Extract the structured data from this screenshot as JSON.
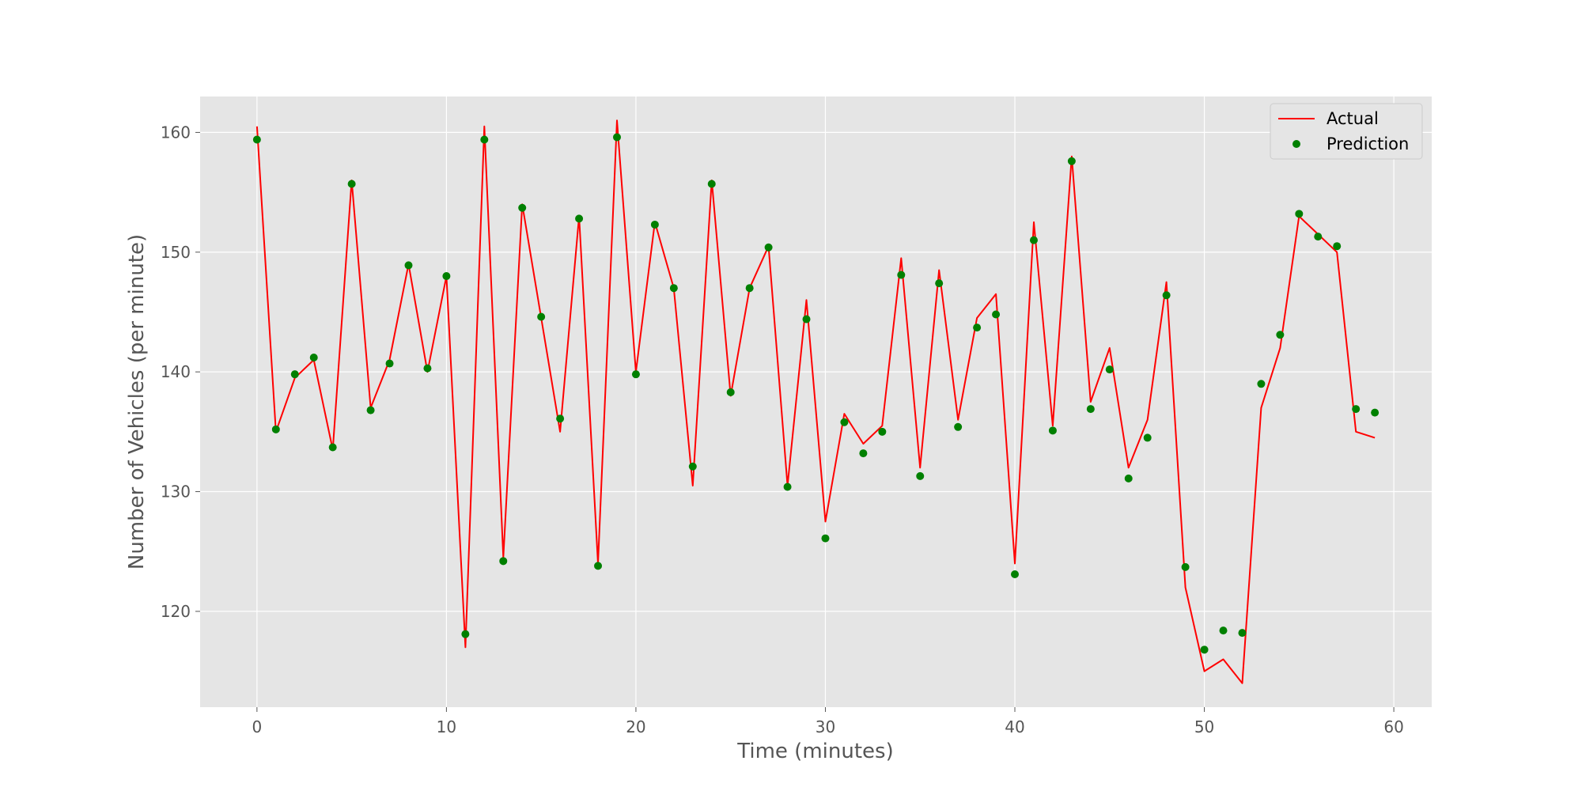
{
  "chart_data": {
    "type": "line",
    "title": "",
    "xlabel": "Time (minutes)",
    "ylabel": "Number of Vehicles (per minute)",
    "xlim": [
      -3,
      62
    ],
    "ylim": [
      112,
      163
    ],
    "xticks": [
      0,
      10,
      20,
      30,
      40,
      50,
      60
    ],
    "yticks": [
      120,
      130,
      140,
      150,
      160
    ],
    "grid": true,
    "legend_position": "top-right",
    "background_color": "#e5e5e5",
    "x": [
      0,
      1,
      2,
      3,
      4,
      5,
      6,
      7,
      8,
      9,
      10,
      11,
      12,
      13,
      14,
      15,
      16,
      17,
      18,
      19,
      20,
      21,
      22,
      23,
      24,
      25,
      26,
      27,
      28,
      29,
      30,
      31,
      32,
      33,
      34,
      35,
      36,
      37,
      38,
      39,
      40,
      41,
      42,
      43,
      44,
      45,
      46,
      47,
      48,
      49,
      50,
      51,
      52,
      53,
      54,
      55,
      56,
      57,
      58,
      59
    ],
    "series": [
      {
        "name": "Actual",
        "kind": "line",
        "color": "#ff0000",
        "values": [
          160.5,
          135,
          139.5,
          141,
          133.5,
          156,
          137,
          141,
          149,
          140,
          148,
          117,
          160.5,
          124.5,
          154,
          144.5,
          135,
          153,
          124,
          161,
          140,
          152.5,
          147,
          130.5,
          156,
          138,
          147,
          150.5,
          130.5,
          146,
          127.5,
          136.5,
          134,
          135.5,
          149.5,
          132,
          148.5,
          136,
          144.5,
          146.5,
          124,
          152.5,
          135.5,
          158,
          137.5,
          142,
          132,
          136,
          147.5,
          122,
          115,
          116,
          114,
          137,
          142,
          153,
          151.5,
          150,
          135,
          134.5
        ]
      },
      {
        "name": "Prediction",
        "kind": "scatter",
        "color": "#008000",
        "values": [
          159.4,
          135.2,
          139.8,
          141.2,
          133.7,
          155.7,
          136.8,
          140.7,
          148.9,
          140.3,
          148,
          118.1,
          159.4,
          124.2,
          153.7,
          144.6,
          136.1,
          152.8,
          123.8,
          159.6,
          139.8,
          152.3,
          147,
          132.1,
          155.7,
          138.3,
          147,
          150.4,
          130.4,
          144.4,
          126.1,
          135.8,
          133.2,
          135,
          148.1,
          131.3,
          147.4,
          135.4,
          143.7,
          144.8,
          123.1,
          151,
          135.1,
          157.6,
          136.9,
          140.2,
          131.1,
          134.5,
          146.4,
          123.7,
          116.8,
          118.4,
          118.2,
          139,
          143.1,
          153.2,
          151.3,
          150.5,
          136.9,
          136.6
        ]
      }
    ]
  }
}
